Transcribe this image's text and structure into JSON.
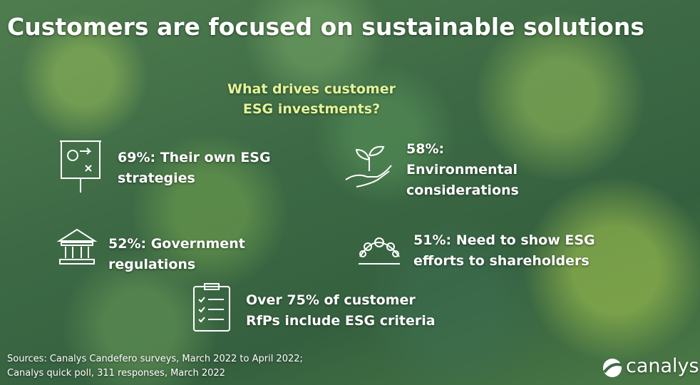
{
  "title": "Customers are focused on sustainable solutions",
  "question": {
    "lines": [
      "What drives customer",
      "ESG investments?"
    ]
  },
  "items": [
    {
      "lines": [
        "69%: Their own ESG",
        "strategies"
      ]
    },
    {
      "lines": [
        "58%:",
        "Environmental",
        "considerations"
      ]
    },
    {
      "lines": [
        "52%: Government",
        "regulations"
      ]
    },
    {
      "lines": [
        "51%: Need to show ESG",
        "efforts to shareholders"
      ]
    },
    {
      "lines": [
        "Over 75% of customer",
        "RfPs include ESG criteria"
      ]
    }
  ],
  "sources": [
    "Sources: Canalys Candefero surveys, March 2022 to April 2022;",
    "Canalys quick poll, 311 responses, March 2022"
  ],
  "logo": "canalys"
}
